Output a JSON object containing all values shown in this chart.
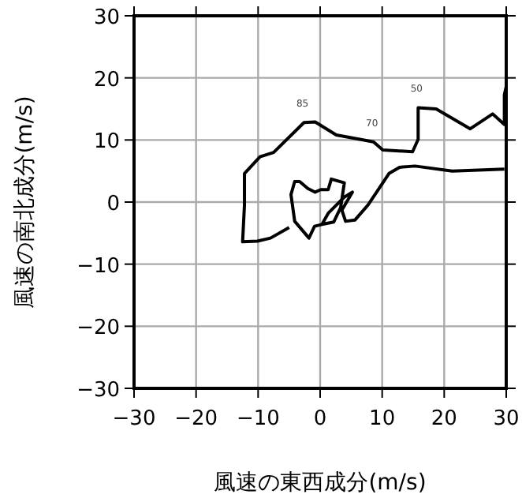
{
  "chart_data": {
    "type": "line",
    "xlabel": "風速の東西成分(m/s)",
    "ylabel": "風速の南北成分(m/s)",
    "xlim": [
      -30,
      30
    ],
    "ylim": [
      -30,
      30
    ],
    "xticks": [
      -30,
      -20,
      -10,
      0,
      10,
      20,
      30
    ],
    "yticks": [
      -30,
      -20,
      -10,
      0,
      10,
      20,
      30
    ],
    "grid": true,
    "annotations": [
      {
        "text": "85",
        "x": -2.6,
        "y": 12.8
      },
      {
        "text": "70",
        "x": 8.6,
        "y": 9.7
      },
      {
        "text": "50",
        "x": 15.8,
        "y": 15.2
      }
    ],
    "series": [
      {
        "color": "#000000",
        "x": [
          -5,
          -8,
          -10.1,
          -12.5,
          -12.2,
          -12.2,
          -9.7,
          -7.5,
          -2.6,
          -0.8,
          2.6,
          6.4,
          8.6,
          10.1,
          14.9,
          15.8,
          15.8,
          18.7,
          24.2,
          27.8,
          29.7,
          29.7,
          30
        ],
        "values": [
          -4.1,
          -5.8,
          -6.3,
          -6.4,
          -0.5,
          4.6,
          7.3,
          8,
          12.8,
          12.9,
          10.8,
          10.1,
          9.7,
          8.4,
          8.1,
          10.1,
          15.2,
          15,
          11.8,
          14.2,
          12.5,
          17.3,
          18.6
        ]
      },
      {
        "color": "#000000",
        "x": [
          0.3,
          2.2,
          3.3,
          3.9,
          1.8,
          1.3,
          0.1,
          -0.8,
          -2,
          -3.3,
          -4.1,
          -4.7,
          -4.1,
          -1.8,
          -0.9,
          0.3,
          1.3,
          3.9,
          5.2,
          3.5,
          4.1,
          5.6,
          7.7,
          11.1,
          12.8,
          15.3,
          21.3,
          29.7
        ],
        "values": [
          -3.6,
          -3.2,
          -0.9,
          3.1,
          3.7,
          2,
          2,
          1.6,
          2.2,
          3.3,
          3.3,
          1.2,
          -3.1,
          -5.8,
          -3.9,
          -3.6,
          -1.8,
          0.8,
          1.6,
          -1.3,
          -3.1,
          -2.9,
          -0.5,
          4.6,
          5.6,
          5.8,
          5,
          5.3
        ]
      }
    ]
  }
}
